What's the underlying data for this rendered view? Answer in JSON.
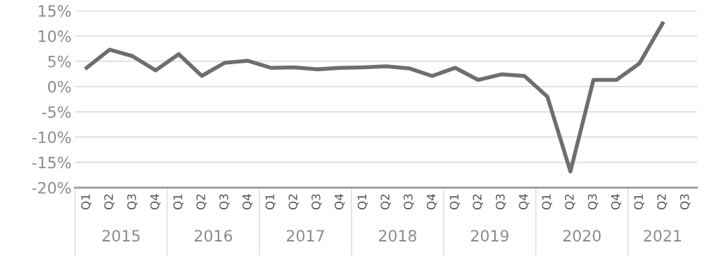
{
  "chart_data": {
    "type": "line",
    "categories": [
      "Q1",
      "Q2",
      "Q3",
      "Q4",
      "Q1",
      "Q2",
      "Q3",
      "Q4",
      "Q1",
      "Q2",
      "Q3",
      "Q4",
      "Q1",
      "Q2",
      "Q3",
      "Q4",
      "Q1",
      "Q2",
      "Q3",
      "Q4",
      "Q1",
      "Q2",
      "Q3",
      "Q4",
      "Q1",
      "Q2",
      "Q3"
    ],
    "annotations": [
      "2015",
      "2016",
      "2017",
      "2018",
      "2019",
      "2020",
      "2021"
    ],
    "series": [
      {
        "color": "#6e6e6e",
        "values": [
          3.7,
          7.3,
          6.0,
          3.2,
          6.4,
          2.1,
          4.7,
          5.1,
          3.7,
          3.8,
          3.4,
          3.7,
          3.8,
          4.0,
          3.6,
          2.1,
          3.7,
          1.3,
          2.4,
          2.1,
          -2.0,
          -16.8,
          1.3,
          1.3,
          4.6,
          12.5,
          null
        ]
      }
    ],
    "ylim": [
      -20,
      15
    ],
    "yticks": [
      {
        "value": -20,
        "label": "-20%"
      },
      {
        "value": -15,
        "label": "-15%"
      },
      {
        "value": -10,
        "label": "-10%"
      },
      {
        "value": -5,
        "label": "-5%"
      },
      {
        "value": 0,
        "label": "0%"
      },
      {
        "value": 5,
        "label": "5%"
      },
      {
        "value": 10,
        "label": "10%"
      },
      {
        "value": 15,
        "label": "15%"
      }
    ],
    "grid": "y",
    "marker": "none",
    "line_style": "solid"
  }
}
